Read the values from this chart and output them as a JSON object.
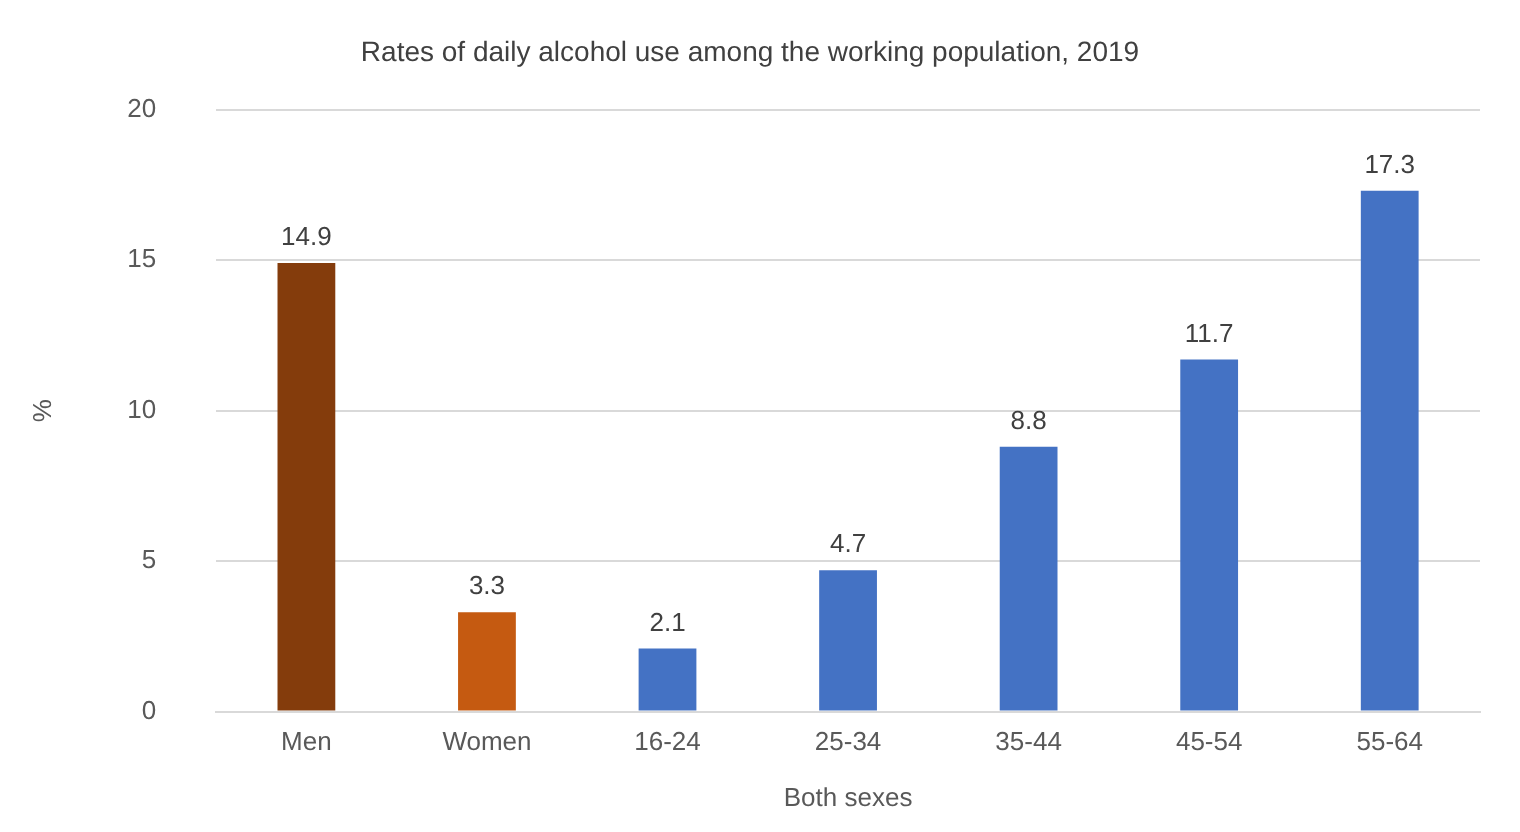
{
  "chart_data": {
    "type": "bar",
    "title": "Rates of daily alcohol use among the working population, 2019",
    "xlabel": "Both sexes",
    "ylabel": "%",
    "categories": [
      "Men",
      "Women",
      "16-24",
      "25-34",
      "35-44",
      "45-54",
      "55-64"
    ],
    "values": [
      14.9,
      3.3,
      2.1,
      4.7,
      8.8,
      11.7,
      17.3
    ],
    "colors": [
      "#843c0c",
      "#c55a11",
      "#4472c4",
      "#4472c4",
      "#4472c4",
      "#4472c4",
      "#4472c4"
    ],
    "ylim": [
      0,
      20
    ],
    "yticks": [
      0,
      5,
      10,
      15,
      20
    ],
    "grid": "y",
    "data_labels": true,
    "legend": false
  }
}
